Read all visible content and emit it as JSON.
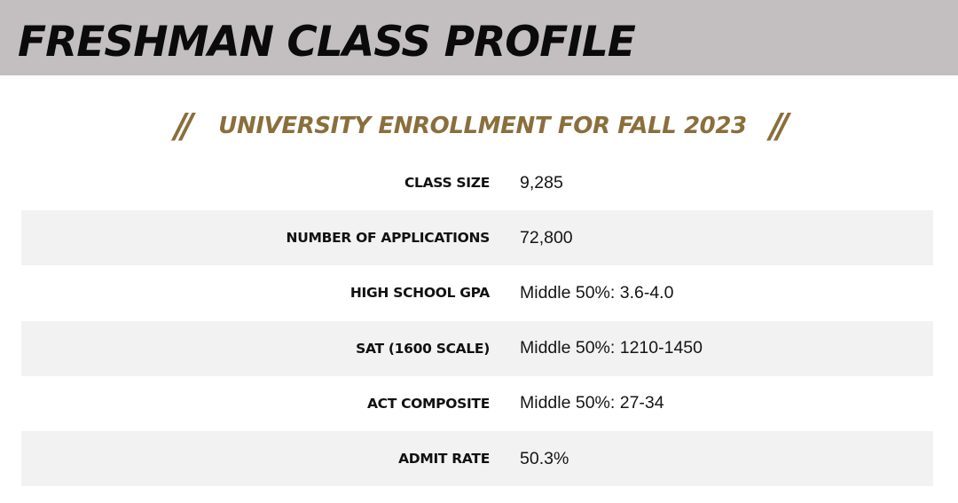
{
  "header": {
    "title": "FRESHMAN CLASS PROFILE"
  },
  "subheader": {
    "decoration_left": "//",
    "title": "UNIVERSITY ENROLLMENT FOR FALL 2023",
    "decoration_right": "//"
  },
  "stats": [
    {
      "label": "CLASS SIZE",
      "value": "9,285"
    },
    {
      "label": "NUMBER OF APPLICATIONS",
      "value": "72,800"
    },
    {
      "label": "HIGH SCHOOL GPA",
      "value": "Middle 50%: 3.6-4.0"
    },
    {
      "label": "SAT (1600 SCALE)",
      "value": "Middle 50%: 1210-1450"
    },
    {
      "label": "ACT COMPOSITE",
      "value": "Middle 50%: 27-34"
    },
    {
      "label": "ADMIT RATE",
      "value": "50.3%"
    }
  ],
  "colors": {
    "header_band": "#c3bfc0",
    "accent_gold": "#8a6f3c",
    "row_shade": "#f2f2f2",
    "text_dark": "#111111"
  }
}
